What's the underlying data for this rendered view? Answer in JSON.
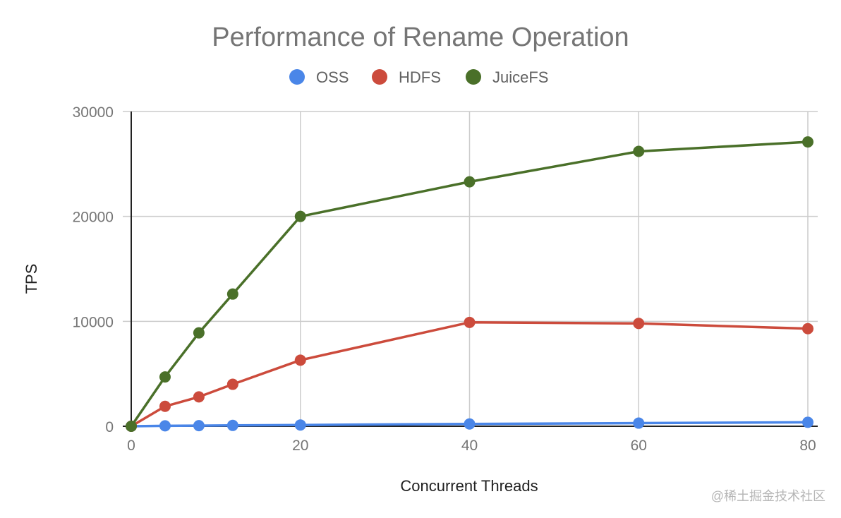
{
  "chart_data": {
    "type": "line",
    "title": "Performance of Rename Operation",
    "xlabel": "Concurrent Threads",
    "ylabel": "TPS",
    "xlim": [
      0,
      80
    ],
    "ylim": [
      0,
      30000
    ],
    "xticks": [
      0,
      20,
      40,
      60,
      80
    ],
    "yticks": [
      0,
      10000,
      20000,
      30000
    ],
    "grid": true,
    "legend_position": "top-center",
    "series": [
      {
        "name": "OSS",
        "color": "#4a86e8",
        "x": [
          0,
          4,
          8,
          12,
          20,
          40,
          60,
          80
        ],
        "values": [
          0,
          40,
          60,
          80,
          120,
          220,
          300,
          380
        ]
      },
      {
        "name": "HDFS",
        "color": "#cc4b3c",
        "x": [
          0,
          4,
          8,
          12,
          20,
          40,
          60,
          80
        ],
        "values": [
          0,
          1900,
          2800,
          4000,
          6300,
          9900,
          9800,
          9300
        ]
      },
      {
        "name": "JuiceFS",
        "color": "#4a7029",
        "x": [
          0,
          4,
          8,
          12,
          20,
          40,
          60,
          80
        ],
        "values": [
          0,
          4700,
          8900,
          12600,
          20000,
          23300,
          26200,
          27100
        ]
      }
    ]
  },
  "watermark": "@稀土掘金技术社区"
}
